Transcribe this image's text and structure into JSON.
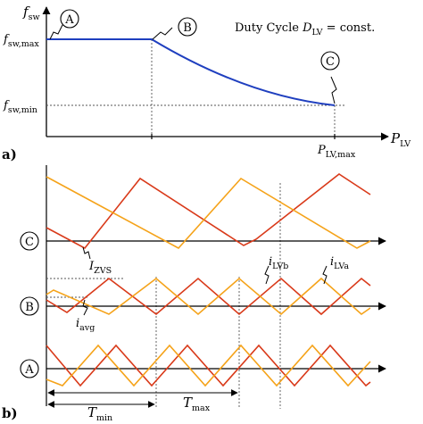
{
  "panel_a": {
    "label": "a)",
    "y_axis": {
      "symbol": "f",
      "subscript": "sw"
    },
    "x_axis": {
      "symbol": "P",
      "subscript": "LV"
    },
    "y_ticks": [
      {
        "symbol": "f",
        "subscript": "sw,max"
      },
      {
        "symbol": "f",
        "subscript": "sw,min"
      }
    ],
    "x_tick": {
      "symbol": "P",
      "subscript": "LV,max"
    },
    "annotation": {
      "prefix": "Duty Cycle ",
      "symbol": "D",
      "subscript": "LV",
      "suffix": " = const."
    },
    "markers": [
      "A",
      "B",
      "C"
    ],
    "colors": {
      "curve": "#1f3fbf"
    }
  },
  "panel_b": {
    "label": "b)",
    "rows": [
      "C",
      "B",
      "A"
    ],
    "labels": {
      "izvs": {
        "symbol": "I",
        "subscript": "ZVS"
      },
      "iavg": {
        "symbol": "i",
        "subscript": "avg"
      },
      "ilvb": {
        "symbol": "i",
        "subscript": "LVb"
      },
      "ilva": {
        "symbol": "i",
        "subscript": "LVa"
      },
      "tmin": {
        "symbol": "T",
        "subscript": "min"
      },
      "tmax": {
        "symbol": "T",
        "subscript": "max"
      }
    },
    "colors": {
      "phase_a": "#d93a1a",
      "phase_b": "#f5a31a"
    }
  }
}
